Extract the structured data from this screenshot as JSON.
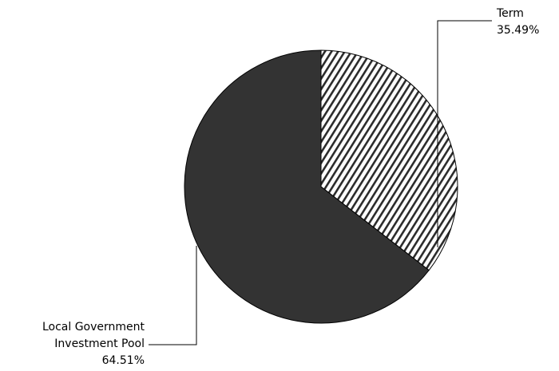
{
  "chart_data": {
    "type": "pie",
    "title": "",
    "slices": [
      {
        "label_lines": [
          "Term"
        ],
        "value_label": "35.49%",
        "value": 35.49,
        "color": "#ffffff",
        "pattern": "diagonal-hatch"
      },
      {
        "label_lines": [
          "Local Government",
          "Investment Pool"
        ],
        "value_label": "64.51%",
        "value": 64.51,
        "color": "#333333",
        "pattern": "solid"
      }
    ],
    "start": "12 o'clock",
    "direction": "clockwise",
    "legend": "none"
  }
}
